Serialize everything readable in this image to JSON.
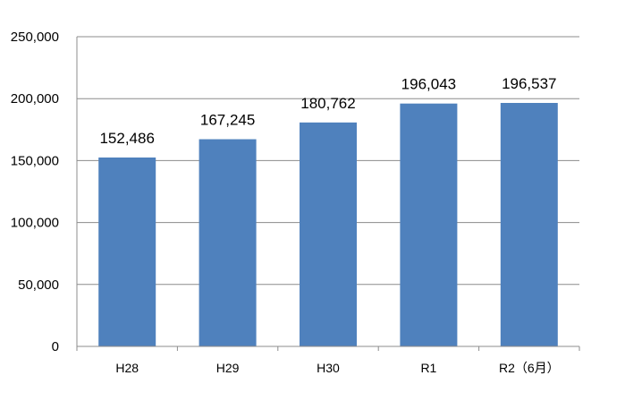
{
  "chart_data": {
    "type": "bar",
    "categories": [
      "H28",
      "H29",
      "H30",
      "R1",
      "R2（6月）"
    ],
    "values": [
      152486,
      167245,
      180762,
      196043,
      196537
    ],
    "value_labels": [
      "152,486",
      "167,245",
      "180,762",
      "196,043",
      "196,537"
    ],
    "ylim": [
      0,
      250000
    ],
    "yticks": [
      0,
      50000,
      100000,
      150000,
      200000,
      250000
    ],
    "ytick_labels": [
      "0",
      "50,000",
      "100,000",
      "150,000",
      "200,000",
      "250,000"
    ],
    "grid": true,
    "colors": {
      "bar": "#4f81bd",
      "grid": "#8c8c8c",
      "axis": "#8c8c8c"
    }
  }
}
